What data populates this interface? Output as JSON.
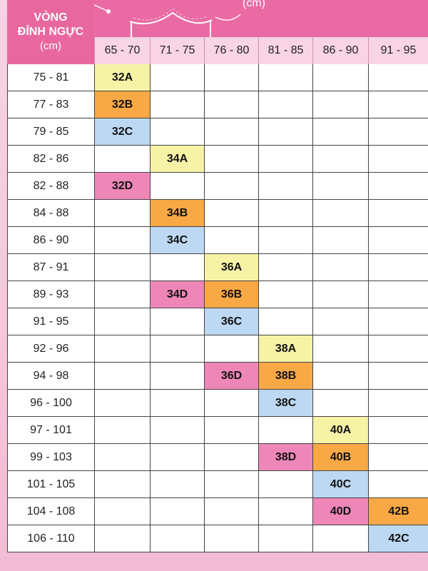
{
  "header": {
    "line1": "VÒNG",
    "line2": "ĐỈNH NGỰC",
    "line3": "(cm)",
    "unit": "(cm)"
  },
  "columns": [
    "65 - 70",
    "71 - 75",
    "76 - 80",
    "81 - 85",
    "86 - 90",
    "91 - 95"
  ],
  "rows": [
    {
      "label": "75 - 81",
      "cells": [
        "32A",
        "",
        "",
        "",
        "",
        ""
      ]
    },
    {
      "label": "77 - 83",
      "cells": [
        "32B",
        "",
        "",
        "",
        "",
        ""
      ]
    },
    {
      "label": "79 - 85",
      "cells": [
        "32C",
        "",
        "",
        "",
        "",
        ""
      ]
    },
    {
      "label": "82 - 86",
      "cells": [
        "",
        "34A",
        "",
        "",
        "",
        ""
      ]
    },
    {
      "label": "82 - 88",
      "cells": [
        "32D",
        "",
        "",
        "",
        "",
        ""
      ]
    },
    {
      "label": "84 - 88",
      "cells": [
        "",
        "34B",
        "",
        "",
        "",
        ""
      ]
    },
    {
      "label": "86 - 90",
      "cells": [
        "",
        "34C",
        "",
        "",
        "",
        ""
      ]
    },
    {
      "label": "87 - 91",
      "cells": [
        "",
        "",
        "36A",
        "",
        "",
        ""
      ]
    },
    {
      "label": "89 - 93",
      "cells": [
        "",
        "34D",
        "36B",
        "",
        "",
        ""
      ]
    },
    {
      "label": "91 - 95",
      "cells": [
        "",
        "",
        "36C",
        "",
        "",
        ""
      ]
    },
    {
      "label": "92 - 96",
      "cells": [
        "",
        "",
        "",
        "38A",
        "",
        ""
      ]
    },
    {
      "label": "94 - 98",
      "cells": [
        "",
        "",
        "36D",
        "38B",
        "",
        ""
      ]
    },
    {
      "label": "96 - 100",
      "cells": [
        "",
        "",
        "",
        "38C",
        "",
        ""
      ]
    },
    {
      "label": "97 - 101",
      "cells": [
        "",
        "",
        "",
        "",
        "40A",
        ""
      ]
    },
    {
      "label": "99 - 103",
      "cells": [
        "",
        "",
        "",
        "38D",
        "40B",
        ""
      ]
    },
    {
      "label": "101 - 105",
      "cells": [
        "",
        "",
        "",
        "",
        "40C",
        ""
      ]
    },
    {
      "label": "104 - 108",
      "cells": [
        "",
        "",
        "",
        "",
        "40D",
        "42B"
      ]
    },
    {
      "label": "106 - 110",
      "cells": [
        "",
        "",
        "",
        "",
        "",
        "42C"
      ]
    }
  ],
  "colors": {
    "A": "#f7f3a6",
    "B": "#f8a845",
    "C": "#bdd8f2",
    "D": "#ee86b8",
    "header": "#e8679f"
  }
}
